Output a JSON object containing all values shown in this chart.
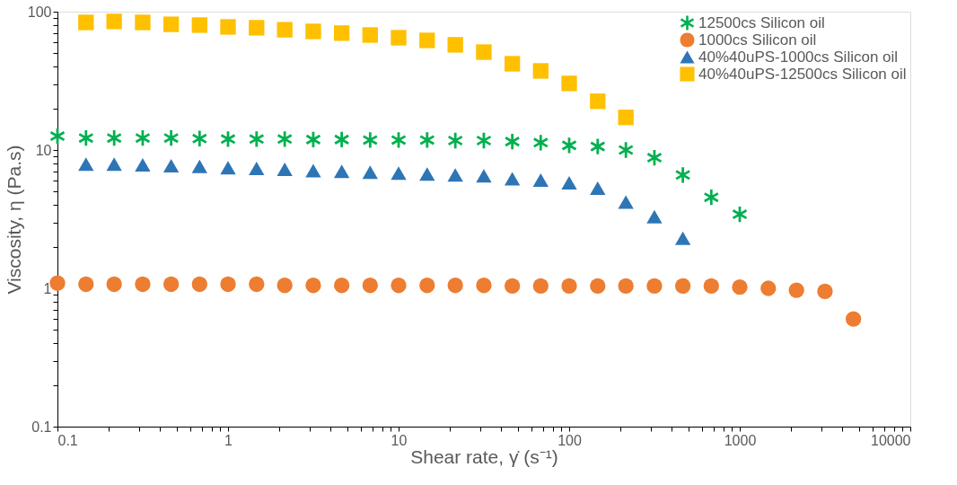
{
  "chart_data": {
    "type": "scatter",
    "xlabel": "Shear rate, γ̇  (s⁻¹)",
    "ylabel": "Viscosity, η (Pa.s)",
    "log": "xy",
    "xlim": [
      0.1,
      10000
    ],
    "ylim": [
      0.1,
      100
    ],
    "xticks": [
      0.1,
      {
        "value": 0.2,
        "label": null
      },
      {
        "value": 0.3,
        "label": null
      },
      {
        "value": 0.4,
        "label": null
      },
      {
        "value": 0.5,
        "label": null
      },
      {
        "value": 0.6,
        "label": null
      },
      {
        "value": 0.7,
        "label": null
      },
      {
        "value": 0.8,
        "label": null
      },
      {
        "value": 0.9,
        "label": null
      },
      1,
      {
        "value": 2,
        "label": null
      },
      {
        "value": 3,
        "label": null
      },
      {
        "value": 4,
        "label": null
      },
      {
        "value": 5,
        "label": null
      },
      {
        "value": 6,
        "label": null
      },
      {
        "value": 7,
        "label": null
      },
      {
        "value": 8,
        "label": null
      },
      {
        "value": 9,
        "label": null
      },
      10,
      {
        "value": 20,
        "label": null
      },
      {
        "value": 30,
        "label": null
      },
      {
        "value": 40,
        "label": null
      },
      {
        "value": 50,
        "label": null
      },
      {
        "value": 60,
        "label": null
      },
      {
        "value": 70,
        "label": null
      },
      {
        "value": 80,
        "label": null
      },
      {
        "value": 90,
        "label": null
      },
      100,
      {
        "value": 200,
        "label": null
      },
      {
        "value": 300,
        "label": null
      },
      {
        "value": 400,
        "label": null
      },
      {
        "value": 500,
        "label": null
      },
      {
        "value": 600,
        "label": null
      },
      {
        "value": 700,
        "label": null
      },
      {
        "value": 800,
        "label": null
      },
      {
        "value": 900,
        "label": null
      },
      1000,
      {
        "value": 2000,
        "label": null
      },
      {
        "value": 3000,
        "label": null
      },
      {
        "value": 4000,
        "label": null
      },
      {
        "value": 5000,
        "label": null
      },
      {
        "value": 6000,
        "label": null
      },
      {
        "value": 7000,
        "label": null
      },
      {
        "value": 8000,
        "label": null
      },
      {
        "value": 9000,
        "label": null
      },
      10000
    ],
    "yticks": [
      0.1,
      {
        "value": 0.2,
        "label": null
      },
      {
        "value": 0.3,
        "label": null
      },
      {
        "value": 0.4,
        "label": null
      },
      {
        "value": 0.5,
        "label": null
      },
      {
        "value": 0.6,
        "label": null
      },
      {
        "value": 0.7,
        "label": null
      },
      {
        "value": 0.8,
        "label": null
      },
      {
        "value": 0.9,
        "label": null
      },
      1,
      {
        "value": 2,
        "label": null
      },
      {
        "value": 3,
        "label": null
      },
      {
        "value": 4,
        "label": null
      },
      {
        "value": 5,
        "label": null
      },
      {
        "value": 6,
        "label": null
      },
      {
        "value": 7,
        "label": null
      },
      {
        "value": 8,
        "label": null
      },
      {
        "value": 9,
        "label": null
      },
      10,
      {
        "value": 20,
        "label": null
      },
      {
        "value": 30,
        "label": null
      },
      {
        "value": 40,
        "label": null
      },
      {
        "value": 50,
        "label": null
      },
      {
        "value": 60,
        "label": null
      },
      {
        "value": 70,
        "label": null
      },
      {
        "value": 80,
        "label": null
      },
      {
        "value": 90,
        "label": null
      },
      100
    ],
    "grid": false,
    "legend": "top right",
    "series": [
      {
        "name": "12500cs Silicon oil",
        "color": "#00b050",
        "marker": "cross",
        "x": [
          0.1,
          0.147,
          0.215,
          0.316,
          0.464,
          0.681,
          1,
          1.47,
          2.15,
          3.16,
          4.64,
          6.81,
          10,
          14.7,
          21.5,
          31.6,
          46.4,
          68.1,
          100,
          147,
          215,
          316,
          464,
          681,
          1000
        ],
        "values": [
          12.6,
          12.2,
          12.2,
          12.2,
          12.2,
          12.1,
          12.0,
          12.0,
          12.0,
          11.9,
          11.9,
          11.8,
          11.8,
          11.8,
          11.7,
          11.7,
          11.5,
          11.3,
          10.8,
          10.6,
          10.0,
          8.8,
          6.6,
          4.55,
          3.43
        ]
      },
      {
        "name": "1000cs Silicon oil",
        "color": "#ed7d31",
        "marker": "circle",
        "x": [
          0.1,
          0.147,
          0.215,
          0.316,
          0.464,
          0.681,
          1,
          1.47,
          2.15,
          3.16,
          4.64,
          6.81,
          10,
          14.7,
          21.5,
          31.6,
          46.4,
          68.1,
          100,
          147,
          215,
          316,
          464,
          681,
          1000,
          1470,
          2150,
          3160,
          4640
        ],
        "values": [
          1.09,
          1.07,
          1.07,
          1.07,
          1.07,
          1.07,
          1.07,
          1.07,
          1.05,
          1.05,
          1.05,
          1.05,
          1.05,
          1.05,
          1.05,
          1.05,
          1.04,
          1.04,
          1.04,
          1.04,
          1.04,
          1.04,
          1.04,
          1.04,
          1.02,
          1.0,
          0.97,
          0.95,
          0.6
        ]
      },
      {
        "name": "40%40uPS-1000cs Silicon oil",
        "color": "#2e75b6",
        "marker": "triangle",
        "x": [
          0.147,
          0.215,
          0.316,
          0.464,
          0.681,
          1,
          1.47,
          2.15,
          3.16,
          4.64,
          6.81,
          10,
          14.7,
          21.5,
          31.6,
          46.4,
          68.1,
          100,
          147,
          215,
          316,
          464
        ],
        "values": [
          7.9,
          7.9,
          7.8,
          7.7,
          7.6,
          7.45,
          7.35,
          7.25,
          7.1,
          7.0,
          6.9,
          6.8,
          6.7,
          6.6,
          6.5,
          6.2,
          6.05,
          5.8,
          5.3,
          4.2,
          3.3,
          2.3
        ]
      },
      {
        "name": "40%40uPS-12500cs Silicon oil",
        "color": "#ffc000",
        "marker": "square",
        "x": [
          0.147,
          0.215,
          0.316,
          0.464,
          0.681,
          1,
          1.47,
          2.15,
          3.16,
          4.64,
          6.81,
          10,
          14.7,
          21.5,
          31.6,
          46.4,
          68.1,
          100,
          147,
          215
        ],
        "values": [
          83.6,
          85,
          83.6,
          81,
          80,
          77.6,
          76.5,
          74,
          72,
          70,
          67.8,
          64.8,
          62,
          57.6,
          51,
          42,
          37.3,
          30.3,
          22.5,
          17.2
        ]
      }
    ]
  }
}
